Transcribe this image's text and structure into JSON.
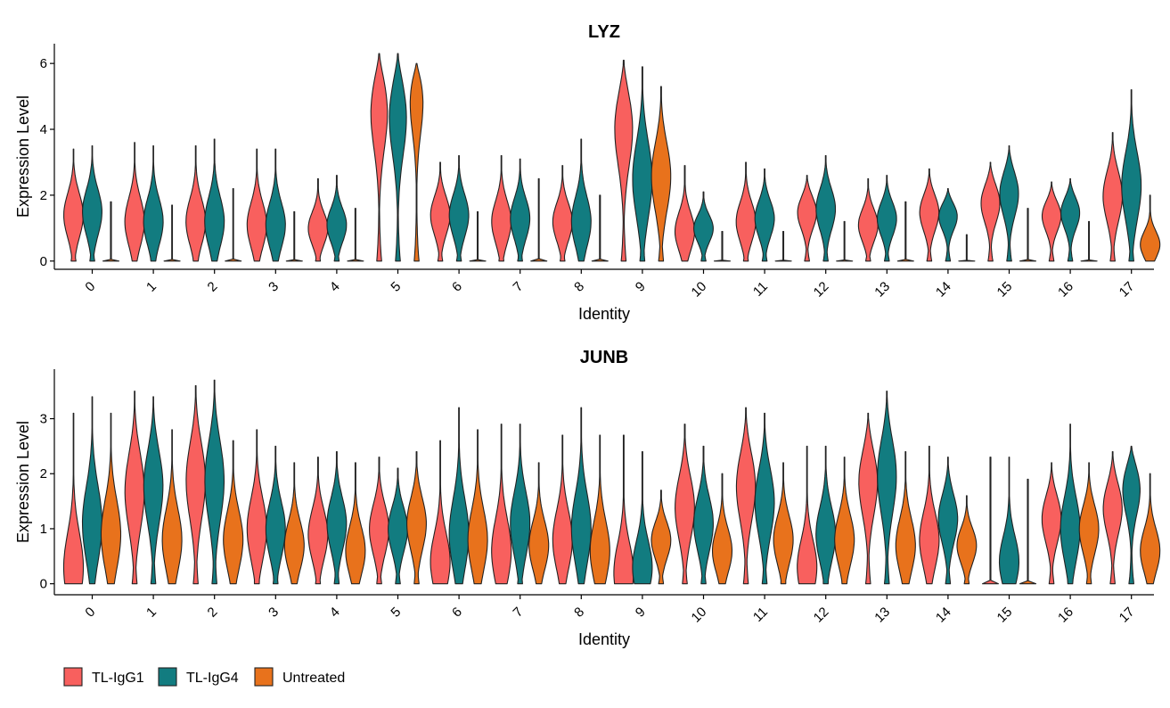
{
  "legend": {
    "items": [
      {
        "name": "TL-IgG1",
        "color": "#F8605E"
      },
      {
        "name": "TL-IgG4",
        "color": "#127C80"
      },
      {
        "name": "Untreated",
        "color": "#E8721C"
      }
    ]
  },
  "chart_data": [
    {
      "type": "violin",
      "title": "LYZ",
      "xlabel": "Identity",
      "ylabel": "Expression Level",
      "ylim": [
        -0.25,
        6.6
      ],
      "yticks": [
        0,
        2,
        4,
        6
      ],
      "categories": [
        "0",
        "1",
        "2",
        "3",
        "4",
        "5",
        "6",
        "7",
        "8",
        "9",
        "10",
        "11",
        "12",
        "13",
        "14",
        "15",
        "16",
        "17"
      ],
      "series": [
        {
          "name": "TL-IgG1",
          "color": "#F8605E",
          "max": [
            3.4,
            3.6,
            3.5,
            3.4,
            2.5,
            6.3,
            3.0,
            3.2,
            2.9,
            6.1,
            2.9,
            3.0,
            2.6,
            2.5,
            2.8,
            3.0,
            2.4,
            3.9
          ],
          "center": [
            1.4,
            1.2,
            1.2,
            1.1,
            1.0,
            4.8,
            1.4,
            1.2,
            1.2,
            4.2,
            0.9,
            1.2,
            1.5,
            1.1,
            1.5,
            1.8,
            1.4,
            2.0
          ]
        },
        {
          "name": "TL-IgG4",
          "color": "#127C80",
          "max": [
            3.5,
            3.5,
            3.7,
            3.4,
            2.6,
            6.3,
            3.2,
            3.1,
            3.7,
            5.9,
            2.1,
            2.8,
            3.2,
            2.6,
            2.2,
            3.5,
            2.5,
            5.2
          ],
          "center": [
            1.5,
            1.2,
            1.2,
            1.1,
            1.1,
            4.6,
            1.4,
            1.3,
            1.2,
            2.5,
            1.0,
            1.3,
            1.6,
            1.3,
            1.4,
            2.1,
            1.5,
            2.3
          ]
        },
        {
          "name": "Untreated",
          "color": "#E8721C",
          "max": [
            1.8,
            1.7,
            2.2,
            1.5,
            1.6,
            6.0,
            1.5,
            2.5,
            2.0,
            5.3,
            0.9,
            0.9,
            1.2,
            1.8,
            0.8,
            1.6,
            1.2,
            2.0
          ],
          "center": [
            0,
            0,
            0,
            0,
            0,
            5.4,
            0,
            0,
            0,
            2.6,
            0,
            0,
            0,
            0,
            0,
            0,
            0,
            0.5
          ]
        }
      ]
    },
    {
      "type": "violin",
      "title": "JUNB",
      "xlabel": "Identity",
      "ylabel": "Expression Level",
      "ylim": [
        -0.2,
        3.9
      ],
      "yticks": [
        0,
        1,
        2,
        3
      ],
      "categories": [
        "0",
        "1",
        "2",
        "3",
        "4",
        "5",
        "6",
        "7",
        "8",
        "9",
        "10",
        "11",
        "12",
        "13",
        "14",
        "15",
        "16",
        "17"
      ],
      "series": [
        {
          "name": "TL-IgG1",
          "color": "#F8605E",
          "max": [
            3.1,
            3.5,
            3.6,
            2.8,
            2.3,
            2.3,
            2.6,
            2.9,
            2.7,
            2.7,
            2.9,
            3.2,
            2.5,
            3.1,
            2.5,
            2.3,
            2.2,
            2.4
          ],
          "center": [
            0.3,
            1.7,
            1.9,
            1.0,
            0.9,
            1.0,
            0.4,
            0.6,
            0.8,
            0.2,
            1.4,
            1.8,
            0.3,
            1.9,
            0.8,
            0.0,
            1.2,
            1.4
          ]
        },
        {
          "name": "TL-IgG4",
          "color": "#127C80",
          "max": [
            3.4,
            3.4,
            3.7,
            2.5,
            2.4,
            2.1,
            3.2,
            2.9,
            3.2,
            2.4,
            2.5,
            3.1,
            2.5,
            3.5,
            2.3,
            2.3,
            2.9,
            2.5
          ],
          "center": [
            1.1,
            1.8,
            1.9,
            1.0,
            1.1,
            1.0,
            0.9,
            1.1,
            1.0,
            0.3,
            1.1,
            1.5,
            0.9,
            2.0,
            1.2,
            0.4,
            1.0,
            1.8
          ]
        },
        {
          "name": "Untreated",
          "color": "#E8721C",
          "max": [
            3.1,
            2.8,
            2.6,
            2.2,
            2.2,
            2.4,
            2.8,
            2.2,
            2.7,
            1.7,
            2.0,
            2.2,
            2.3,
            2.4,
            1.6,
            1.9,
            2.2,
            2.0
          ],
          "center": [
            0.9,
            0.8,
            0.8,
            0.7,
            0.6,
            1.1,
            0.8,
            0.7,
            0.6,
            0.8,
            0.6,
            0.8,
            0.8,
            0.7,
            0.7,
            0.0,
            1.0,
            0.6
          ]
        }
      ]
    }
  ]
}
